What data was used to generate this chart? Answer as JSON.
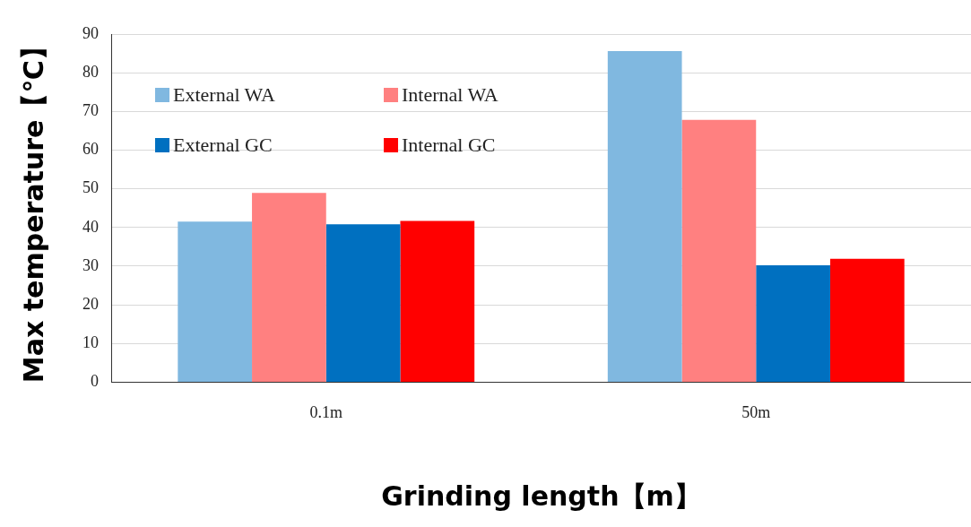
{
  "chart_data": {
    "type": "bar",
    "xlabel": "Grinding length【m】",
    "ylabel": "Max temperature【℃】",
    "categories": [
      "0.1m",
      "50m"
    ],
    "series": [
      {
        "name": "External WA",
        "color": "#80b8e0",
        "values": [
          41.5,
          85.6
        ]
      },
      {
        "name": "Internal WA",
        "color": "#ff8080",
        "values": [
          48.9,
          67.8
        ]
      },
      {
        "name": "External GC",
        "color": "#0070c0",
        "values": [
          40.8,
          30.2
        ]
      },
      {
        "name": "Internal GC",
        "color": "#ff0000",
        "values": [
          41.7,
          31.9
        ]
      }
    ],
    "ylim": [
      0,
      90
    ],
    "yticks": [
      0,
      10,
      20,
      30,
      40,
      50,
      60,
      70,
      80,
      90
    ],
    "grid": "y",
    "legend": "top left"
  }
}
